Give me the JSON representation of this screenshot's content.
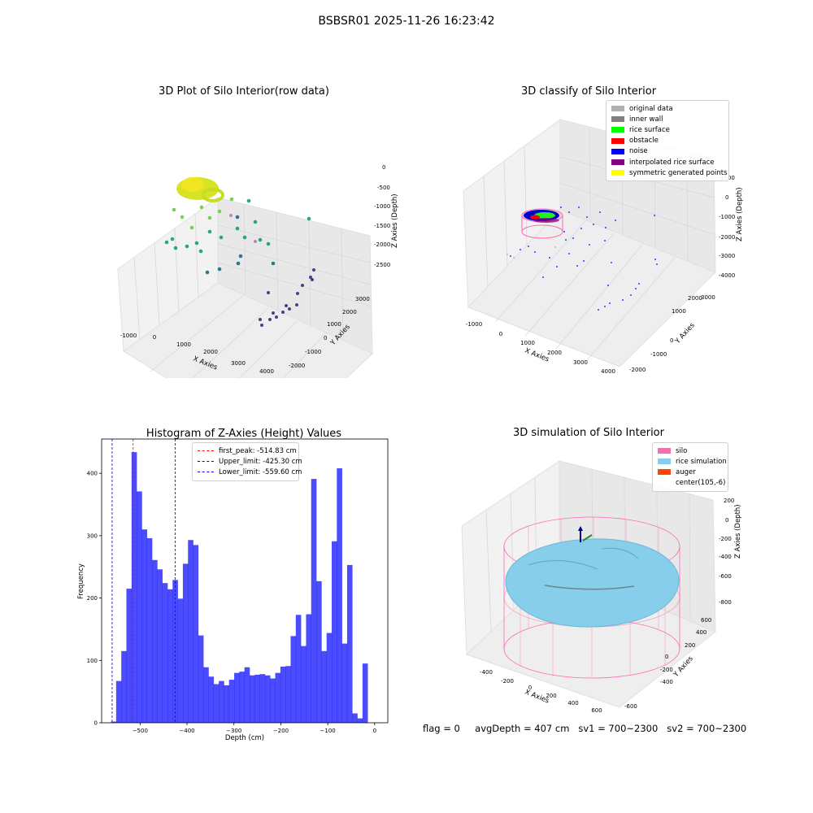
{
  "suptitle": "BSBSR01 2025-11-26 16:23:42",
  "footer": {
    "flag": "flag = 0",
    "avg_depth": "avgDepth = 407 cm",
    "sv1": "sv1 = 700~2300",
    "sv2": "sv2 = 700~2300"
  },
  "panel_tl": {
    "title": "3D Plot of Silo Interior(row data)",
    "xlabel": "X Axies",
    "ylabel": "Y Axies",
    "zlabel": "Z Axies (Depth)",
    "xticks": [
      "-1000",
      "0",
      "1000",
      "2000",
      "3000",
      "4000"
    ],
    "yticks": [
      "-2000",
      "-1000",
      "0",
      "1000",
      "2000",
      "3000"
    ],
    "zticks": [
      "0",
      "-500",
      "-1000",
      "-1500",
      "-2000",
      "-2500"
    ]
  },
  "panel_tr": {
    "title": "3D classify of Silo Interior",
    "xlabel": "X Axies",
    "ylabel": "Y Axies",
    "zlabel": "Z Axies (Depth)",
    "xticks": [
      "-1000",
      "0",
      "1000",
      "2000",
      "3000",
      "4000"
    ],
    "yticks": [
      "-2000",
      "-1000",
      "0",
      "1000",
      "2000",
      "3000"
    ],
    "zticks": [
      "1000",
      "0",
      "-1000",
      "-2000",
      "-3000",
      "-4000"
    ],
    "legend": [
      {
        "label": "original data",
        "color": "#b0b0b0"
      },
      {
        "label": "inner wall",
        "color": "#808080"
      },
      {
        "label": "rice surface",
        "color": "#00ff00"
      },
      {
        "label": "obstacle",
        "color": "#ff0000"
      },
      {
        "label": "noise",
        "color": "#0000ff"
      },
      {
        "label": "interpolated rice surface",
        "color": "#800080"
      },
      {
        "label": "symmetric generated points",
        "color": "#ffff00"
      }
    ]
  },
  "panel_br": {
    "title": "3D simulation of Silo Interior",
    "xlabel": "X Axies",
    "ylabel": "Y Axies",
    "zlabel": "Z Axies (Depth)",
    "xticks": [
      "-400",
      "-200",
      "0",
      "200",
      "400",
      "600"
    ],
    "yticks": [
      "-600",
      "-400",
      "-200",
      "0",
      "200",
      "400",
      "600"
    ],
    "zticks": [
      "200",
      "0",
      "-200",
      "-400",
      "-600",
      "-800"
    ],
    "legend": [
      {
        "label": "silo",
        "color": "#ff69b4"
      },
      {
        "label": "rice simulation",
        "color": "#87ceeb"
      },
      {
        "label": "auger",
        "color": "#ff4500"
      },
      {
        "label": "center(105,-6)",
        "color": "#ffffff"
      }
    ]
  },
  "chart_data": {
    "type": "bar",
    "title": "Histogram of Z-Axies (Height) Values",
    "xlabel": "Depth (cm)",
    "ylabel": "Frequency",
    "xlim": [
      -582,
      28
    ],
    "ylim": [
      0,
      455
    ],
    "xticks": [
      -500,
      -400,
      -300,
      -200,
      -100,
      0
    ],
    "yticks": [
      0,
      100,
      200,
      300,
      400
    ],
    "bar_color": "#0000ff",
    "bin_start": -562,
    "bin_width": 10.94,
    "values": [
      2,
      67,
      115,
      215,
      434,
      371,
      310,
      296,
      261,
      246,
      224,
      214,
      229,
      199,
      255,
      293,
      285,
      140,
      89,
      74,
      62,
      67,
      60,
      69,
      80,
      82,
      89,
      76,
      77,
      78,
      76,
      71,
      80,
      90,
      91,
      139,
      173,
      123,
      174,
      391,
      227,
      115,
      144,
      291,
      408,
      127,
      253,
      15,
      7,
      95
    ],
    "vlines": [
      {
        "label": "first_peak: -514.83 cm",
        "x": -514.83,
        "color": "#ff0000"
      },
      {
        "label": "Upper_limit: -425.30 cm",
        "x": -425.3,
        "color": "#0000ff"
      },
      {
        "label": "Lower_limit: -559.60 cm",
        "x": -559.6,
        "color": "#0000ff"
      }
    ]
  }
}
